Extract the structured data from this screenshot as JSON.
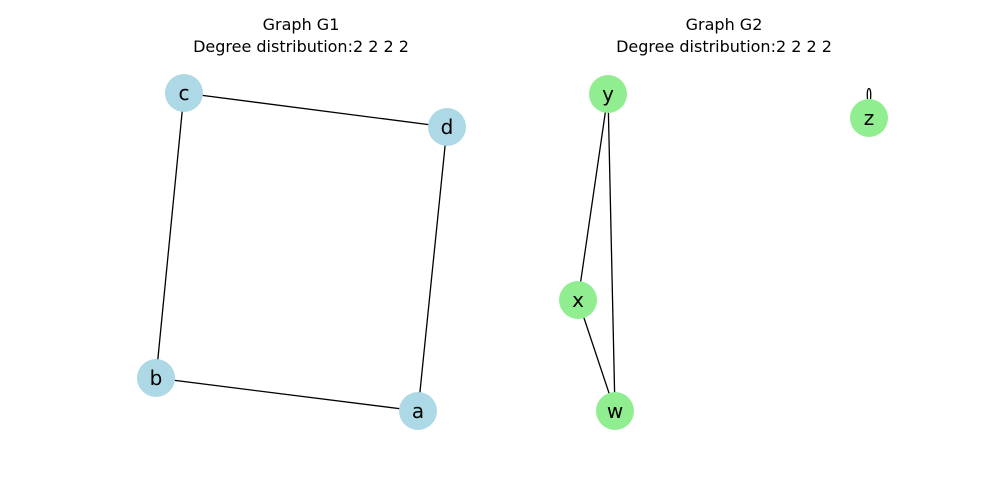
{
  "graphs": [
    {
      "title": "Graph G1",
      "subtitle": "Degree distribution:2 2 2 2",
      "node_color": "#add8e6",
      "nodes": [
        "a",
        "b",
        "c",
        "d"
      ],
      "edges": [
        [
          "c",
          "d"
        ],
        [
          "c",
          "b"
        ],
        [
          "d",
          "a"
        ],
        [
          "b",
          "a"
        ]
      ]
    },
    {
      "title": "Graph G2",
      "subtitle": "Degree distribution:2 2 2 2",
      "node_color": "#90ee90",
      "nodes": [
        "w",
        "x",
        "y",
        "z"
      ],
      "edges": [
        [
          "y",
          "x"
        ],
        [
          "y",
          "w"
        ],
        [
          "x",
          "w"
        ],
        [
          "z",
          "z"
        ]
      ]
    }
  ]
}
